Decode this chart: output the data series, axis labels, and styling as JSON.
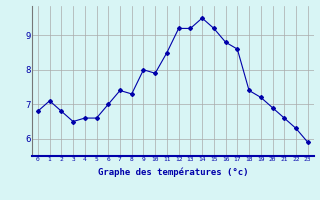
{
  "hours": [
    0,
    1,
    2,
    3,
    4,
    5,
    6,
    7,
    8,
    9,
    10,
    11,
    12,
    13,
    14,
    15,
    16,
    17,
    18,
    19,
    20,
    21,
    22,
    23
  ],
  "temps": [
    6.8,
    7.1,
    6.8,
    6.5,
    6.6,
    6.6,
    7.0,
    7.4,
    7.3,
    8.0,
    7.9,
    8.5,
    9.2,
    9.2,
    9.5,
    9.2,
    8.8,
    8.6,
    7.4,
    7.2,
    6.9,
    6.6,
    6.3,
    5.9
  ],
  "line_color": "#0000aa",
  "marker": "D",
  "marker_size": 2.0,
  "bg_color": "#d8f5f5",
  "grid_color": "#aaaaaa",
  "xlabel": "Graphe des températures (°c)",
  "xlabel_color": "#0000aa",
  "tick_label_color": "#0000aa",
  "ylim": [
    5.5,
    9.85
  ],
  "yticks": [
    6,
    7,
    8,
    9
  ],
  "xtick_labels": [
    "0",
    "1",
    "2",
    "3",
    "4",
    "5",
    "6",
    "7",
    "8",
    "9",
    "10",
    "11",
    "12",
    "13",
    "14",
    "15",
    "16",
    "17",
    "18",
    "19",
    "20",
    "21",
    "22",
    "23"
  ]
}
